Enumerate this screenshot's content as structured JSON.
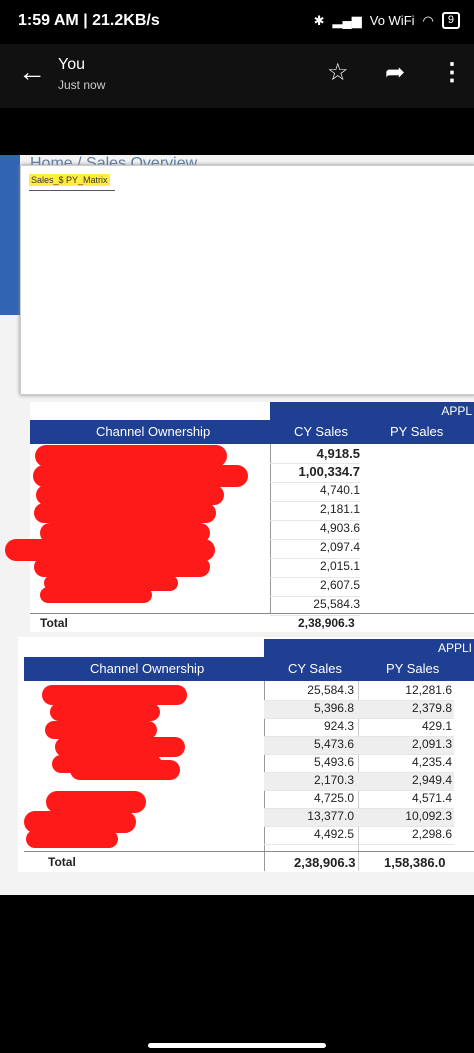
{
  "status": {
    "time": "1:59 AM | 21.2KB/s",
    "network": "Vo WiFi",
    "battery": "9"
  },
  "appbar": {
    "title": "You",
    "subtitle": "Just now"
  },
  "report": {
    "breadcrumb": "Home / Sales Overview",
    "popup_tag": "Sales_$ PY_Matrix",
    "table1": {
      "group_header": "APPL",
      "headers": [
        "Channel Ownership",
        "CY Sales",
        "PY Sales"
      ],
      "cy": [
        "4,918.5",
        "1,00,334.7",
        "4,740.1",
        "2,181.1",
        "4,903.6",
        "2,097.4",
        "2,015.1",
        "2,607.5",
        "25,584.3"
      ],
      "total_label": "Total",
      "total_cy": "2,38,906.3"
    },
    "table2": {
      "group_header": "APPLI",
      "headers": [
        "Channel Ownership",
        "CY Sales",
        "PY Sales"
      ],
      "rows": [
        [
          "25,584.3",
          "12,281.6"
        ],
        [
          "5,396.8",
          "2,379.8"
        ],
        [
          "924.3",
          "429.1"
        ],
        [
          "5,473.6",
          "2,091.3"
        ],
        [
          "5,493.6",
          "4,235.4"
        ],
        [
          "2,170.3",
          "2,949.4"
        ],
        [
          "4,725.0",
          "4,571.4"
        ],
        [
          "13,377.0",
          "10,092.3"
        ],
        [
          "4,492.5",
          "2,298.6"
        ]
      ],
      "total_label": "Total",
      "total_cy": "2,38,906.3",
      "total_py": "1,58,386.0"
    }
  }
}
